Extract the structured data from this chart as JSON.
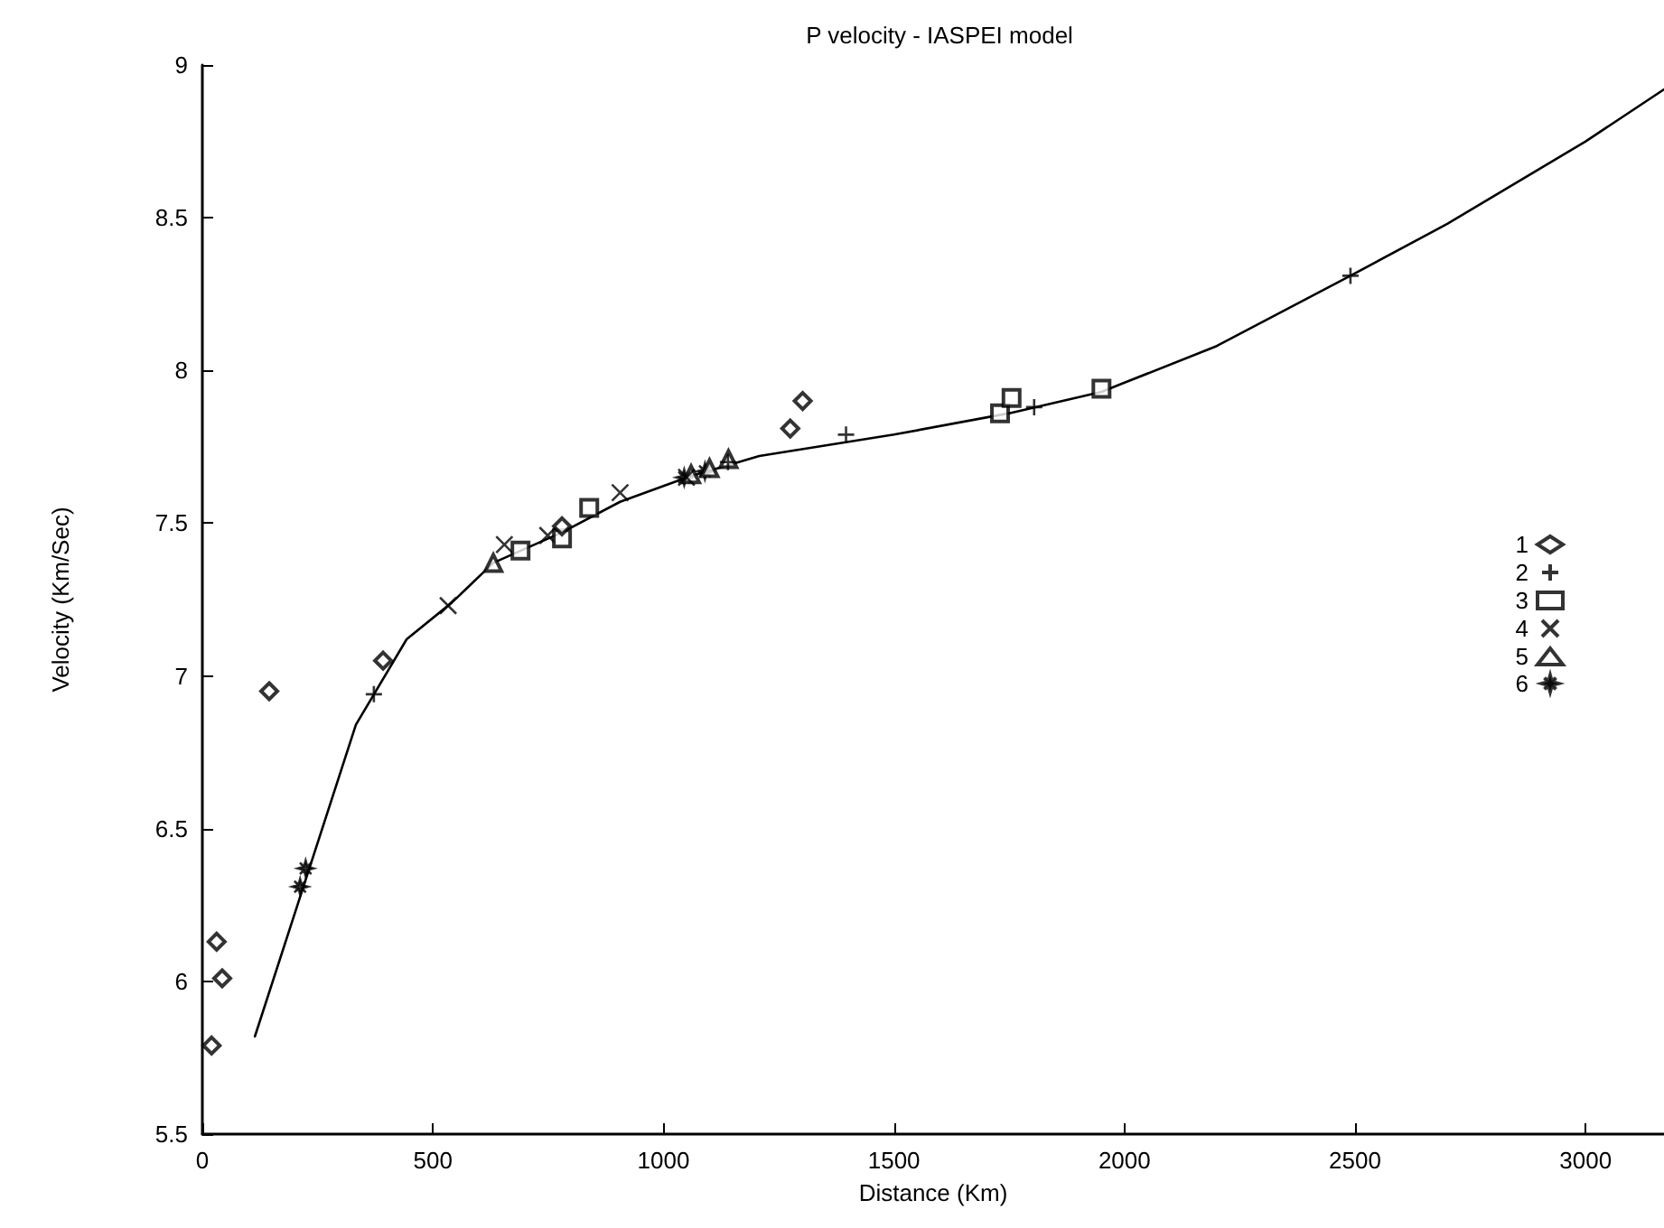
{
  "chart_data": {
    "type": "scatter",
    "title": "P velocity - IASPEI model",
    "xlabel": "Distance (Km)",
    "ylabel": "Velocity (Km/Sec)",
    "xlim": [
      0,
      3170
    ],
    "xticks": [
      0,
      500,
      1000,
      1500,
      2000,
      2500,
      3000
    ],
    "ylim": [
      5.5,
      9
    ],
    "yticks": [
      5.5,
      6,
      6.5,
      7,
      7.5,
      8,
      8.5,
      9
    ],
    "grid": false,
    "legend": "right",
    "series": [
      {
        "name": "1",
        "color": "#000000",
        "marker": "diamond",
        "x": [
          20,
          31,
          43,
          145,
          392,
          780,
          1275,
          1302
        ],
        "values": [
          5.79,
          6.13,
          6.01,
          6.95,
          7.05,
          7.49,
          7.81,
          7.9
        ]
      },
      {
        "name": "2",
        "color": "#000000",
        "marker": "plus",
        "x": [
          372,
          1140,
          1396,
          1804,
          2490
        ],
        "values": [
          6.94,
          7.7,
          7.79,
          7.88,
          8.31
        ]
      },
      {
        "name": "3",
        "color": "#000000",
        "marker": "square",
        "x": [
          690,
          780,
          839,
          1730,
          1755,
          1950
        ],
        "values": [
          7.41,
          7.45,
          7.55,
          7.86,
          7.91,
          7.94
        ]
      },
      {
        "name": "4",
        "color": "#000000",
        "marker": "cross",
        "x": [
          533,
          655,
          749,
          906,
          1050
        ],
        "values": [
          7.23,
          7.43,
          7.46,
          7.6,
          7.65
        ]
      },
      {
        "name": "5",
        "color": "#000000",
        "marker": "triangle",
        "x": [
          631,
          1060,
          1100,
          1141
        ],
        "values": [
          7.37,
          7.66,
          7.68,
          7.71
        ]
      },
      {
        "name": "6",
        "color": "#000000",
        "marker": "star",
        "x": [
          212,
          224,
          1045,
          1090
        ],
        "values": [
          6.31,
          6.37,
          7.65,
          7.67
        ]
      },
      {
        "type": "line",
        "color": "#000000",
        "marker": "none",
        "x": [
          114,
          333,
          443,
          541,
          631,
          780,
          906,
          1051,
          1208,
          1500,
          1750,
          1950,
          2000,
          2200,
          2490,
          2700,
          3000,
          3170
        ],
        "values": [
          5.82,
          6.84,
          7.12,
          7.24,
          7.37,
          7.47,
          7.57,
          7.65,
          7.72,
          7.79,
          7.86,
          7.93,
          7.96,
          8.08,
          8.31,
          8.48,
          8.75,
          8.92
        ]
      }
    ]
  }
}
